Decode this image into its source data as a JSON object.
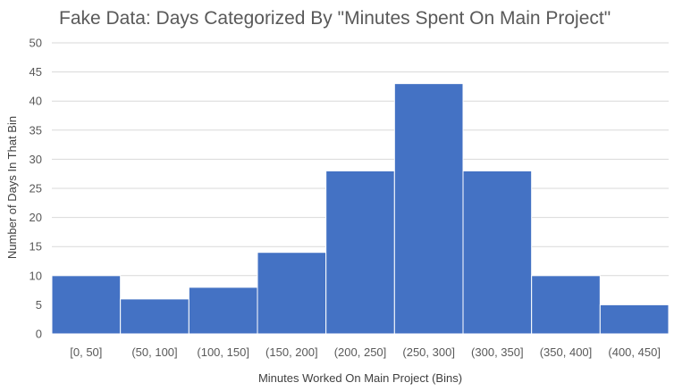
{
  "chart_data": {
    "type": "bar",
    "title": "Fake Data: Days Categorized By \"Minutes Spent On Main Project\"",
    "xlabel": "Minutes Worked On Main Project (Bins)",
    "ylabel": "Number of Days In That Bin",
    "categories": [
      "[0, 50]",
      "(50, 100]",
      "(100, 150]",
      "(150, 200]",
      "(200, 250]",
      "(250, 300]",
      "(300, 350]",
      "(350, 400]",
      "(400, 450]"
    ],
    "values": [
      10,
      6,
      8,
      14,
      28,
      43,
      28,
      10,
      5
    ],
    "ylim": [
      0,
      50
    ],
    "yticks": [
      0,
      5,
      10,
      15,
      20,
      25,
      30,
      35,
      40,
      45,
      50
    ],
    "grid": true,
    "bar_color": "#4472c4"
  }
}
